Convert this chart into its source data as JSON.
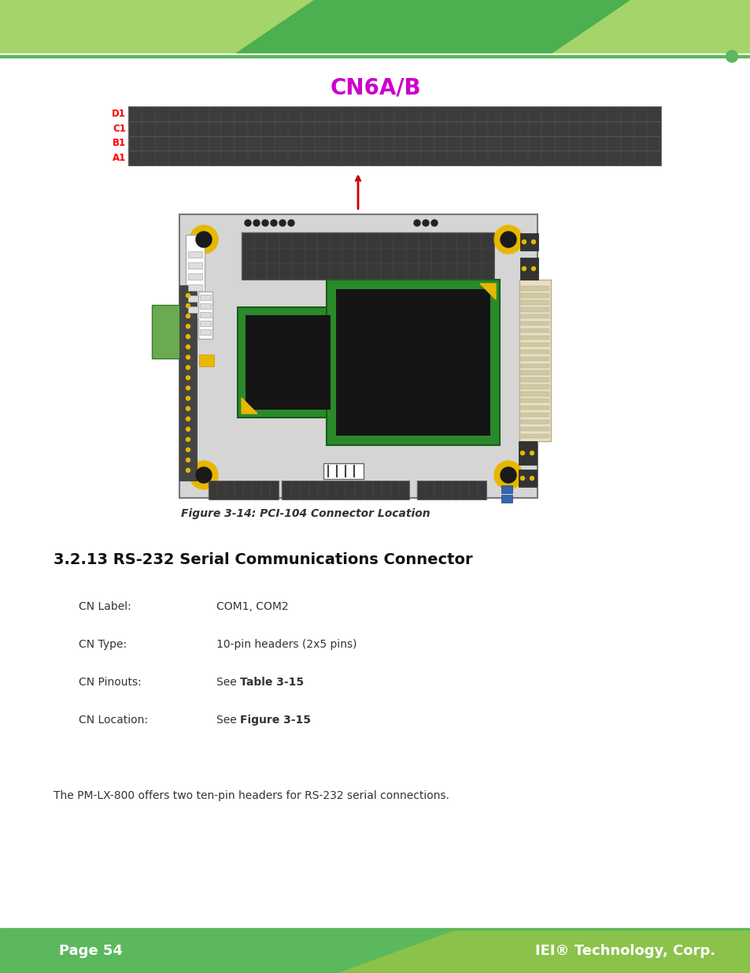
{
  "title": "CN6A/B",
  "title_color": "#cc00cc",
  "title_fontsize": 18,
  "figure_bg": "#ffffff",
  "row_labels": [
    "D1",
    "C1",
    "B1",
    "A1"
  ],
  "section_title": "3.2.13 RS-232 Serial Communications Connector",
  "section_title_fontsize": 14,
  "figure_caption": "Figure 3-14: PCI-104 Connector Location",
  "cn_label_label": "CN Label:",
  "cn_label_value": "COM1, COM2",
  "cn_type_label": "CN Type:",
  "cn_type_value": "10-pin headers (2x5 pins)",
  "cn_pinouts_label": "CN Pinouts:",
  "cn_pinouts_value": "See Table 3-15",
  "cn_location_label": "CN Location:",
  "cn_location_value": "See Figure 3-15",
  "footer_text_left": "Page 54",
  "footer_text_right": "IEI® Technology, Corp.",
  "body_text": "The PM-LX-800 offers two ten-pin headers for RS-232 serial connections.",
  "header_light_green": "#a5d46a",
  "header_dark_green": "#4caf50",
  "footer_green": "#5cb85c",
  "footer_light_green": "#8bc34a",
  "board_bg": "#d8d8d8",
  "board_edge": "#666666",
  "connector_dark": "#3a3a3a",
  "yellow": "#e6b800",
  "green_ic": "#2d8a2d",
  "black_ic": "#1a1a1a",
  "red_arrow": "#cc0000"
}
